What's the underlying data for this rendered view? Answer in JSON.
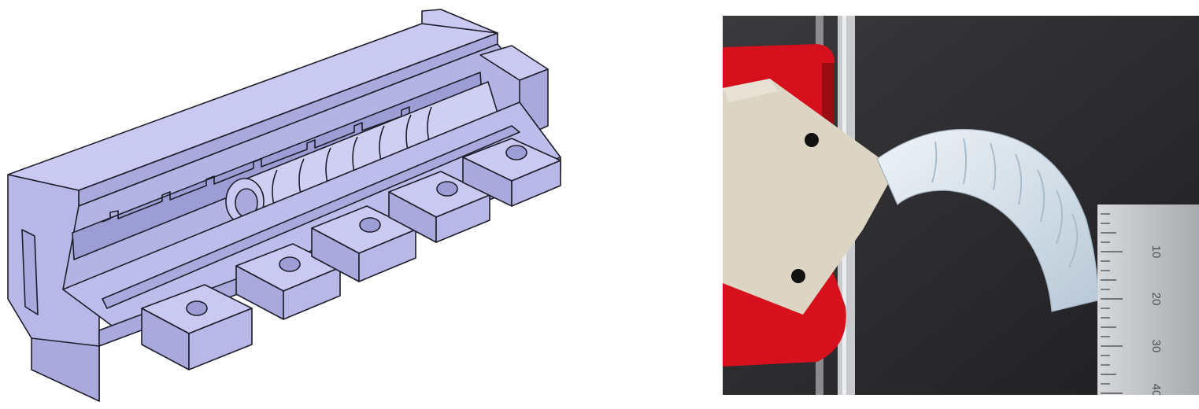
{
  "figure": {
    "left_panel": {
      "name": "mold-cad-model"
    },
    "right_panel": {
      "name": "actuator-photo",
      "ruler": {
        "ticks": [
          "10",
          "20",
          "30",
          "40"
        ]
      }
    }
  },
  "colors": {
    "cad_top": "#c9c9f1",
    "cad_front": "#a9a9dd",
    "cad_side": "#b8b8e8",
    "outline": "#1e1e2a",
    "clamp_red": "#d6101c",
    "background_dark": "#2b2b2d",
    "silicone": "#d6e2ea",
    "holder_beige": "#dcd5c4",
    "ruler_steel": "#b9bcbf"
  }
}
